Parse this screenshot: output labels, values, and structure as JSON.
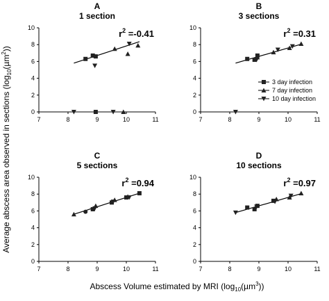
{
  "figure": {
    "ylabel_text": "Average abscess area observed in sections (log",
    "ylabel_sub": "10",
    "ylabel_unit": "(µm",
    "ylabel_sup": "2",
    "ylabel_end": "))",
    "xlabel_text": "Abscess Volume estimated by MRI (log",
    "xlabel_sub": "10",
    "xlabel_unit": "(µm",
    "xlabel_sup": "3",
    "xlabel_end": "))"
  },
  "legend": {
    "entries": [
      "3 day infection",
      "7 day infection",
      "10 day infection"
    ]
  },
  "chart_data": [
    {
      "type": "scatter",
      "panel": "A",
      "title": "1 section",
      "r2_label": "r",
      "r2_sup": "2",
      "r2_value": "=-0.41",
      "xlim": [
        7,
        11
      ],
      "ylim": [
        0,
        10
      ],
      "x_ticks": [
        7,
        8,
        9,
        10,
        11
      ],
      "y_ticks": [
        0,
        2,
        4,
        6,
        8,
        10
      ],
      "series": [
        {
          "name": "3 day infection",
          "marker": "square",
          "points": [
            [
              8.6,
              6.3
            ],
            [
              8.85,
              6.7
            ],
            [
              8.95,
              6.6
            ],
            [
              8.95,
              0
            ]
          ]
        },
        {
          "name": "7 day infection",
          "marker": "triangle-up",
          "points": [
            [
              9.6,
              7.5
            ],
            [
              10.05,
              6.9
            ],
            [
              10.4,
              7.9
            ],
            [
              9.9,
              0
            ]
          ]
        },
        {
          "name": "10 day infection",
          "marker": "triangle-down",
          "points": [
            [
              8.92,
              5.5
            ],
            [
              10.1,
              8.1
            ],
            [
              8.2,
              0
            ],
            [
              9.55,
              0
            ]
          ]
        }
      ],
      "fit": {
        "x": [
          8.2,
          10.45
        ],
        "y": [
          5.8,
          8.35
        ]
      }
    },
    {
      "type": "scatter",
      "panel": "B",
      "title": "3 sections",
      "r2_label": "r",
      "r2_sup": "2",
      "r2_value": "=0.31",
      "xlim": [
        7,
        11
      ],
      "ylim": [
        0,
        10
      ],
      "x_ticks": [
        7,
        8,
        9,
        10,
        11
      ],
      "y_ticks": [
        0,
        2,
        4,
        6,
        8,
        10
      ],
      "series": [
        {
          "name": "3 day infection",
          "marker": "square",
          "points": [
            [
              8.6,
              6.3
            ],
            [
              8.85,
              6.2
            ],
            [
              8.95,
              6.7
            ]
          ]
        },
        {
          "name": "7 day infection",
          "marker": "triangle-up",
          "points": [
            [
              9.5,
              7.1
            ],
            [
              10.05,
              7.6
            ],
            [
              10.45,
              8.1
            ],
            [
              8.95,
              6.5
            ]
          ]
        },
        {
          "name": "10 day infection",
          "marker": "triangle-down",
          "points": [
            [
              8.92,
              6.2
            ],
            [
              9.65,
              7.4
            ],
            [
              10.15,
              7.8
            ],
            [
              8.2,
              0
            ]
          ]
        }
      ],
      "fit": {
        "x": [
          8.2,
          10.45
        ],
        "y": [
          5.8,
          8.05
        ]
      }
    },
    {
      "type": "scatter",
      "panel": "C",
      "title": "5 sections",
      "r2_label": "r",
      "r2_sup": "2",
      "r2_value": "=0.94",
      "xlim": [
        7,
        11
      ],
      "ylim": [
        0,
        10
      ],
      "x_ticks": [
        7,
        8,
        9,
        10,
        11
      ],
      "y_ticks": [
        0,
        2,
        4,
        6,
        8,
        10
      ],
      "series": [
        {
          "name": "3 day infection",
          "marker": "square",
          "points": [
            [
              8.85,
              6.2
            ],
            [
              9.5,
              7.0
            ],
            [
              10.0,
              7.6
            ],
            [
              10.45,
              8.1
            ]
          ]
        },
        {
          "name": "7 day infection",
          "marker": "triangle-up",
          "points": [
            [
              8.2,
              5.6
            ],
            [
              8.95,
              6.6
            ],
            [
              9.6,
              7.3
            ],
            [
              10.05,
              7.7
            ]
          ]
        },
        {
          "name": "10 day infection",
          "marker": "triangle-down",
          "points": [
            [
              8.92,
              6.3
            ],
            [
              9.55,
              7.1
            ],
            [
              10.1,
              7.6
            ]
          ]
        },
        {
          "name": "",
          "marker": "circle",
          "points": [
            [
              8.6,
              5.9
            ]
          ]
        }
      ],
      "fit": {
        "x": [
          8.2,
          10.45
        ],
        "y": [
          5.6,
          8.1
        ]
      }
    },
    {
      "type": "scatter",
      "panel": "D",
      "title": "10 sections",
      "r2_label": "r",
      "r2_sup": "2",
      "r2_value": "=0.97",
      "xlim": [
        7,
        11
      ],
      "ylim": [
        0,
        10
      ],
      "x_ticks": [
        7,
        8,
        9,
        10,
        11
      ],
      "y_ticks": [
        0,
        2,
        4,
        6,
        8,
        10
      ],
      "series": [
        {
          "name": "3 day infection",
          "marker": "square",
          "points": [
            [
              8.6,
              6.4
            ],
            [
              8.85,
              6.2
            ],
            [
              8.95,
              6.6
            ],
            [
              9.5,
              7.2
            ]
          ]
        },
        {
          "name": "7 day infection",
          "marker": "triangle-up",
          "points": [
            [
              9.6,
              7.4
            ],
            [
              10.05,
              7.6
            ],
            [
              10.45,
              8.1
            ]
          ]
        },
        {
          "name": "10 day infection",
          "marker": "triangle-down",
          "points": [
            [
              8.2,
              5.8
            ],
            [
              8.92,
              6.5
            ],
            [
              9.55,
              7.1
            ],
            [
              10.1,
              7.8
            ]
          ]
        }
      ],
      "fit": {
        "x": [
          8.2,
          10.45
        ],
        "y": [
          5.8,
          8.05
        ]
      }
    }
  ]
}
